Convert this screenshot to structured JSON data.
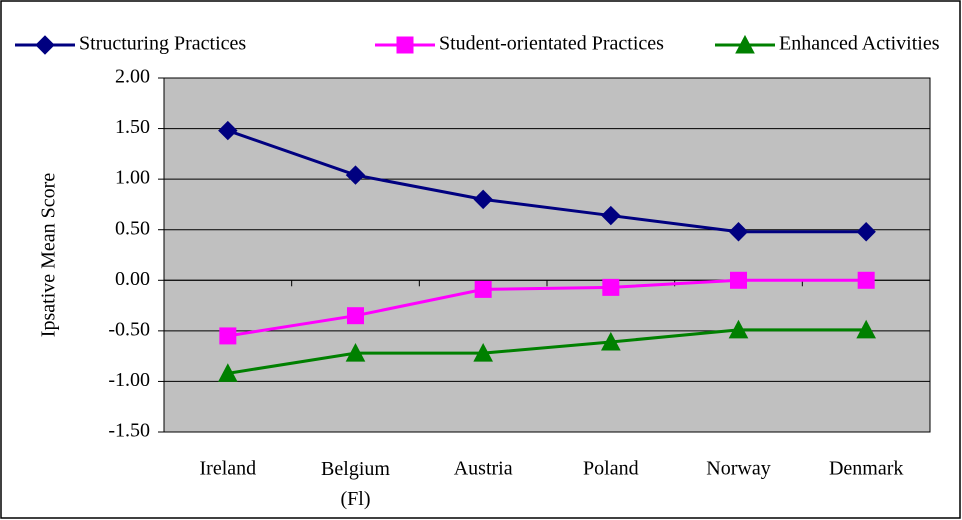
{
  "chart_data": {
    "type": "line",
    "y_label": "Ipsative Mean Score",
    "categories": [
      "Ireland",
      "Belgium (Fl)",
      "Austria",
      "Poland",
      "Norway",
      "Denmark"
    ],
    "series": [
      {
        "name": "Structuring Practices",
        "color": "#000080",
        "marker": "diamond",
        "values": [
          1.48,
          1.04,
          0.8,
          0.64,
          0.48,
          0.48
        ]
      },
      {
        "name": "Student-orientated Practices",
        "color": "#ff00ff",
        "marker": "square",
        "values": [
          -0.55,
          -0.35,
          -0.09,
          -0.07,
          0.0,
          0.0
        ]
      },
      {
        "name": "Enhanced Activities",
        "color": "#008000",
        "marker": "triangle",
        "values": [
          -0.92,
          -0.72,
          -0.72,
          -0.61,
          -0.49,
          -0.49
        ]
      }
    ],
    "ylim": [
      -1.5,
      2.0
    ],
    "yticks": [
      {
        "value": 2.0,
        "label": "2.00"
      },
      {
        "value": 1.5,
        "label": "1.50"
      },
      {
        "value": 1.0,
        "label": "1.00"
      },
      {
        "value": 0.5,
        "label": "0.50"
      },
      {
        "value": 0.0,
        "label": "0.00"
      },
      {
        "value": -0.5,
        "label": "-0.50"
      },
      {
        "value": -1.0,
        "label": "-1.00"
      },
      {
        "value": -1.5,
        "label": "-1.50"
      }
    ],
    "grid": true,
    "legend": "top",
    "plot_background": "#c0c0c0"
  }
}
